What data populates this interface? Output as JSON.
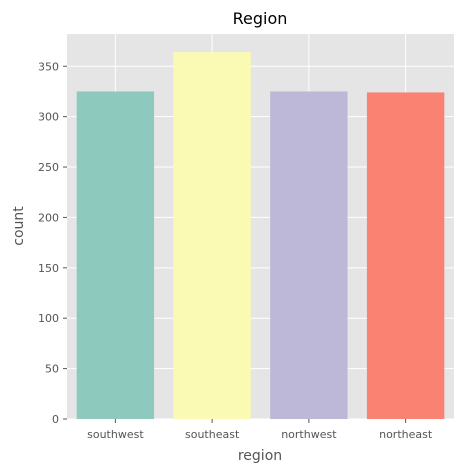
{
  "chart_data": {
    "type": "bar",
    "title": "Region",
    "xlabel": "region",
    "ylabel": "count",
    "categories": [
      "southwest",
      "southeast",
      "northwest",
      "northeast"
    ],
    "values": [
      325,
      364,
      325,
      324
    ],
    "ylim": [
      0,
      382
    ],
    "yticks": [
      0,
      50,
      100,
      150,
      200,
      250,
      300,
      350
    ],
    "colors": [
      "#8dc9bd",
      "#fafab4",
      "#bdb8d7",
      "#f98272"
    ],
    "grid": true,
    "background": "#e5e5e5",
    "grid_color": "#ffffff"
  }
}
